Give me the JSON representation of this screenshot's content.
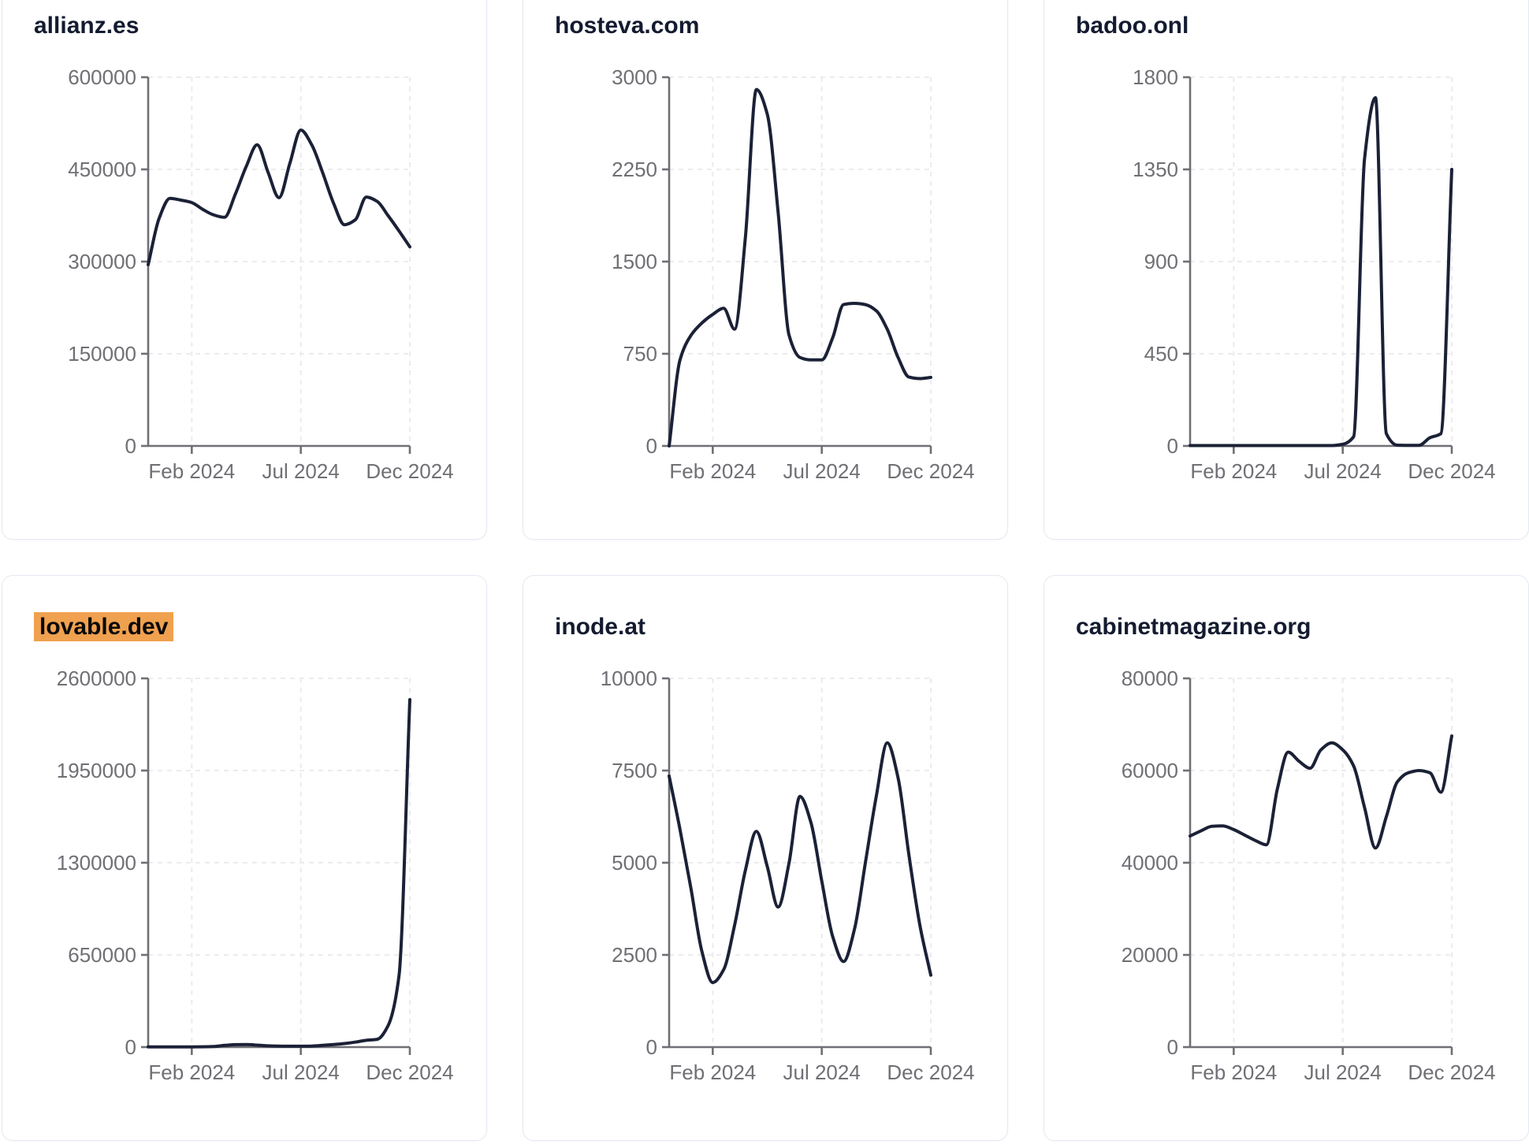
{
  "theme": {
    "line_color": "#1b2136",
    "axis_color": "#6f6f75",
    "tick_label_color": "#6f6f75",
    "grid_color": "#ececef",
    "card_border_color": "#e4e9f1",
    "title_color": "#141b30",
    "highlight_bg": "#f0a14f",
    "highlight_text": "#0a0a0a"
  },
  "cards": [
    {
      "title": "allianz.es",
      "highlighted": false
    },
    {
      "title": "hosteva.com",
      "highlighted": false
    },
    {
      "title": "badoo.onl",
      "highlighted": false
    },
    {
      "title": "lovable.dev",
      "highlighted": true
    },
    {
      "title": "inode.at",
      "highlighted": false
    },
    {
      "title": "cabinetmagazine.org",
      "highlighted": false
    }
  ],
  "chart_data": [
    {
      "type": "line",
      "title": "allianz.es",
      "xlabel": "",
      "ylabel": "",
      "legend": "none",
      "grid": "dashed",
      "x_tick_labels": [
        "Feb 2024",
        "Jul 2024",
        "Dec 2024"
      ],
      "x_tick_month_positions": [
        2,
        7,
        12
      ],
      "x_span_months": 12,
      "x_step_months": 0.5,
      "y_ticks": [
        0,
        150000,
        300000,
        450000,
        600000
      ],
      "ylim": [
        0,
        600000
      ],
      "values": [
        295000,
        370000,
        403000,
        400000,
        396000,
        385000,
        376000,
        372000,
        410000,
        455000,
        490000,
        445000,
        404000,
        460000,
        514000,
        490000,
        445000,
        395000,
        360000,
        368000,
        405000,
        398000,
        375000,
        350000,
        324000
      ]
    },
    {
      "type": "line",
      "title": "hosteva.com",
      "xlabel": "",
      "ylabel": "",
      "legend": "none",
      "grid": "dashed",
      "x_tick_labels": [
        "Feb 2024",
        "Jul 2024",
        "Dec 2024"
      ],
      "x_tick_month_positions": [
        2,
        7,
        12
      ],
      "x_span_months": 12,
      "x_step_months": 0.5,
      "y_ticks": [
        0,
        750,
        1500,
        2250,
        3000
      ],
      "ylim": [
        0,
        3000
      ],
      "values": [
        0,
        700,
        900,
        1000,
        1070,
        1120,
        950,
        1700,
        2900,
        2700,
        1900,
        900,
        720,
        700,
        700,
        880,
        1150,
        1160,
        1150,
        1100,
        950,
        720,
        560,
        548,
        558
      ]
    },
    {
      "type": "line",
      "title": "badoo.onl",
      "xlabel": "",
      "ylabel": "",
      "legend": "none",
      "grid": "dashed",
      "x_tick_labels": [
        "Feb 2024",
        "Jul 2024",
        "Dec 2024"
      ],
      "x_tick_month_positions": [
        2,
        7,
        12
      ],
      "x_span_months": 12,
      "x_step_months": 0.5,
      "y_ticks": [
        0,
        450,
        900,
        1350,
        1800
      ],
      "ylim": [
        0,
        1800
      ],
      "values": [
        2,
        2,
        2,
        2,
        2,
        2,
        2,
        2,
        2,
        2,
        2,
        2,
        2,
        2,
        8,
        45,
        1400,
        1700,
        60,
        4,
        3,
        3,
        40,
        60,
        1350
      ]
    },
    {
      "type": "line",
      "title": "lovable.dev",
      "xlabel": "",
      "ylabel": "",
      "legend": "none",
      "grid": "dashed",
      "x_tick_labels": [
        "Feb 2024",
        "Jul 2024",
        "Dec 2024"
      ],
      "x_tick_month_positions": [
        2,
        7,
        12
      ],
      "x_span_months": 12,
      "x_step_months": 0.5,
      "y_ticks": [
        0,
        650000,
        1300000,
        1950000,
        2600000
      ],
      "ylim": [
        0,
        2600000
      ],
      "values": [
        1500,
        1500,
        1500,
        1500,
        1500,
        2000,
        4000,
        12000,
        17000,
        18000,
        14000,
        9000,
        7000,
        6000,
        6000,
        7000,
        12000,
        18000,
        25000,
        35000,
        48000,
        55000,
        150000,
        500000,
        2450000
      ]
    },
    {
      "type": "line",
      "title": "inode.at",
      "xlabel": "",
      "ylabel": "",
      "legend": "none",
      "grid": "dashed",
      "x_tick_labels": [
        "Feb 2024",
        "Jul 2024",
        "Dec 2024"
      ],
      "x_tick_month_positions": [
        2,
        7,
        12
      ],
      "x_span_months": 12,
      "x_step_months": 0.5,
      "y_ticks": [
        0,
        2500,
        5000,
        7500,
        10000
      ],
      "ylim": [
        0,
        10000
      ],
      "values": [
        7350,
        5900,
        4300,
        2600,
        1750,
        2100,
        3300,
        4800,
        5850,
        4900,
        3800,
        5000,
        6800,
        6100,
        4500,
        3000,
        2320,
        3200,
        5000,
        6800,
        8250,
        7300,
        5200,
        3300,
        1950
      ]
    },
    {
      "type": "line",
      "title": "cabinetmagazine.org",
      "xlabel": "",
      "ylabel": "",
      "legend": "none",
      "grid": "dashed",
      "x_tick_labels": [
        "Feb 2024",
        "Jul 2024",
        "Dec 2024"
      ],
      "x_tick_month_positions": [
        2,
        7,
        12
      ],
      "x_span_months": 12,
      "x_step_months": 0.5,
      "y_ticks": [
        0,
        20000,
        40000,
        60000,
        80000
      ],
      "ylim": [
        0,
        80000
      ],
      "values": [
        45800,
        46900,
        47900,
        48000,
        47200,
        46000,
        44800,
        43900,
        56000,
        64000,
        62000,
        60500,
        64500,
        66000,
        64500,
        61000,
        52000,
        43200,
        50000,
        57500,
        59500,
        60000,
        59500,
        55300,
        67500
      ]
    }
  ]
}
